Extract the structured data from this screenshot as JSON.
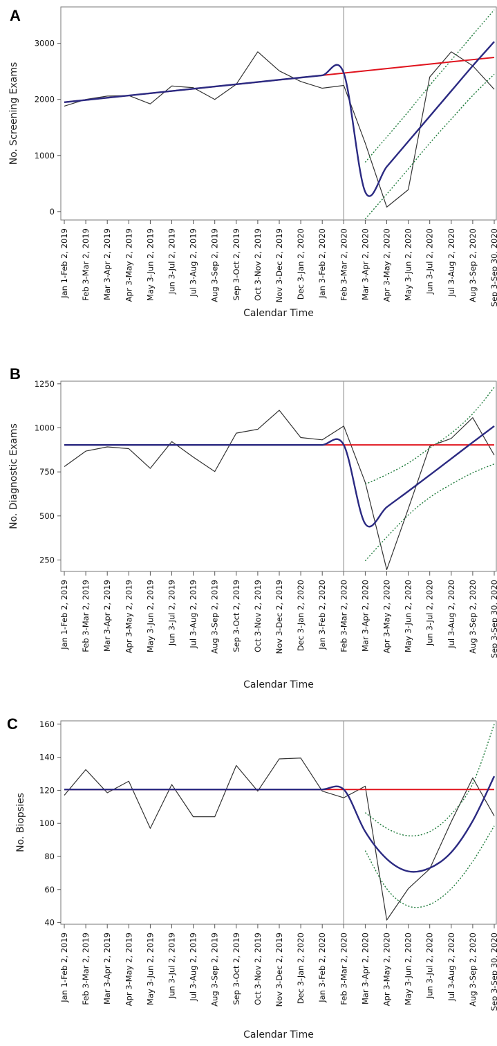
{
  "x_tick_labels": [
    "Jan 1-Feb 2, 2019",
    "Feb 3-Mar 2, 2019",
    "Mar 3-Apr 2, 2019",
    "Apr 3-May 2, 2019",
    "May 3-Jun 2, 2019",
    "Jun 3-Jul 2, 2019",
    "Jul 3-Aug 2, 2019",
    "Aug 3-Sep 2, 2019",
    "Sep 3-Oct 2, 2019",
    "Oct 3-Nov 2, 2019",
    "Nov 3-Dec 2, 2019",
    "Dec 3-Jan 2, 2020",
    "Jan 3-Feb 2, 2020",
    "Feb 3-Mar 2, 2020",
    "Mar 3-Apr 2, 2020",
    "Apr 3-May 2, 2020",
    "May 3-Jun 2, 2020",
    "Jun 3-Jul 2, 2020",
    "Jul 3-Aug 2, 2020",
    "Aug 3-Sep 2, 2020",
    "Sep 3-Sep 30, 2020"
  ],
  "colors": {
    "observed": "#333333",
    "trend": "#e0141e",
    "model": "#2b2a82",
    "ci": "#1d7a3a",
    "divider": "#999999",
    "axis": "#777777"
  },
  "chart_data": [
    {
      "panel_letter": "A",
      "type": "line",
      "ylabel": "No. Screening Exams",
      "xlabel": "Calendar Time",
      "ylim": [
        -150,
        3650
      ],
      "yticks": [
        0,
        1000,
        2000,
        3000
      ],
      "divider_index": 13,
      "series": [
        {
          "role": "observed",
          "values": [
            1880,
            2000,
            2060,
            2070,
            1920,
            2240,
            2210,
            2000,
            2270,
            2850,
            2510,
            2320,
            2200,
            2250,
            1220,
            80,
            390,
            2400,
            2850,
            2600,
            2180
          ]
        },
        {
          "role": "trend",
          "values": [
            1950,
            1990,
            2030,
            2070,
            2110,
            2150,
            2190,
            2230,
            2270,
            2310,
            2350,
            2390,
            2430,
            2470,
            2510,
            2550,
            2590,
            2630,
            2670,
            2710,
            2750
          ]
        },
        {
          "role": "model",
          "values": [
            1950,
            1990,
            2030,
            2070,
            2110,
            2150,
            2190,
            2230,
            2270,
            2310,
            2350,
            2390,
            2430,
            2470,
            350,
            800,
            1250,
            1700,
            2150,
            2600,
            3030
          ]
        },
        {
          "role": "ci_upper",
          "start_index": 14,
          "values": [
            880,
            1330,
            1780,
            2250,
            2700,
            3150,
            3600
          ]
        },
        {
          "role": "ci_lower",
          "start_index": 14,
          "values": [
            -130,
            310,
            760,
            1220,
            1650,
            2070,
            2450
          ]
        }
      ]
    },
    {
      "panel_letter": "B",
      "type": "line",
      "ylabel": "No. Diagnostic Exams",
      "xlabel": "Calendar Time",
      "ylim": [
        185,
        1265
      ],
      "yticks": [
        250,
        500,
        750,
        1000,
        1250
      ],
      "divider_index": 13,
      "series": [
        {
          "role": "observed",
          "values": [
            780,
            868,
            892,
            882,
            770,
            922,
            834,
            752,
            970,
            992,
            1100,
            945,
            932,
            1010,
            690,
            195,
            540,
            895,
            940,
            1058,
            845
          ]
        },
        {
          "role": "trend",
          "values": [
            903,
            903,
            903,
            903,
            903,
            903,
            903,
            903,
            903,
            903,
            903,
            903,
            903,
            903,
            903,
            903,
            903,
            903,
            903,
            903,
            903
          ]
        },
        {
          "role": "model",
          "values": [
            903,
            903,
            903,
            903,
            903,
            903,
            903,
            903,
            903,
            903,
            903,
            903,
            903,
            903,
            455,
            550,
            640,
            732,
            825,
            918,
            1010
          ]
        },
        {
          "role": "ci_upper",
          "start_index": 14,
          "values": [
            680,
            735,
            800,
            885,
            970,
            1080,
            1230
          ]
        },
        {
          "role": "ci_lower",
          "start_index": 14,
          "values": [
            245,
            380,
            505,
            605,
            680,
            745,
            795
          ]
        }
      ]
    },
    {
      "panel_letter": "C",
      "type": "line",
      "ylabel": "No. Biopsies",
      "xlabel": "Calendar Time",
      "ylim": [
        39,
        162
      ],
      "yticks": [
        40,
        60,
        80,
        100,
        120,
        140,
        160
      ],
      "divider_index": 13,
      "series": [
        {
          "role": "observed",
          "values": [
            117,
            132.5,
            118.5,
            125.5,
            97,
            123.5,
            104,
            104,
            135,
            119.5,
            139,
            139.5,
            119.5,
            115.5,
            122.5,
            41.5,
            60.5,
            72.5,
            101,
            127.5,
            104.5
          ]
        },
        {
          "role": "trend",
          "values": [
            120.5,
            120.5,
            120.5,
            120.5,
            120.5,
            120.5,
            120.5,
            120.5,
            120.5,
            120.5,
            120.5,
            120.5,
            120.5,
            120.5,
            120.5,
            120.5,
            120.5,
            120.5,
            120.5,
            120.5,
            120.5
          ]
        },
        {
          "role": "model",
          "values": [
            120.5,
            120.5,
            120.5,
            120.5,
            120.5,
            120.5,
            120.5,
            120.5,
            120.5,
            120.5,
            120.5,
            120.5,
            120.5,
            120.5,
            95,
            78.5,
            71,
            73,
            82.5,
            101.5,
            128.5
          ]
        },
        {
          "role": "ci_upper",
          "start_index": 14,
          "values": [
            106.5,
            97,
            92.5,
            95,
            105.5,
            124,
            160
          ]
        },
        {
          "role": "ci_lower",
          "start_index": 14,
          "values": [
            83.5,
            60.5,
            50,
            51,
            60.5,
            77,
            98.5
          ]
        }
      ]
    }
  ]
}
